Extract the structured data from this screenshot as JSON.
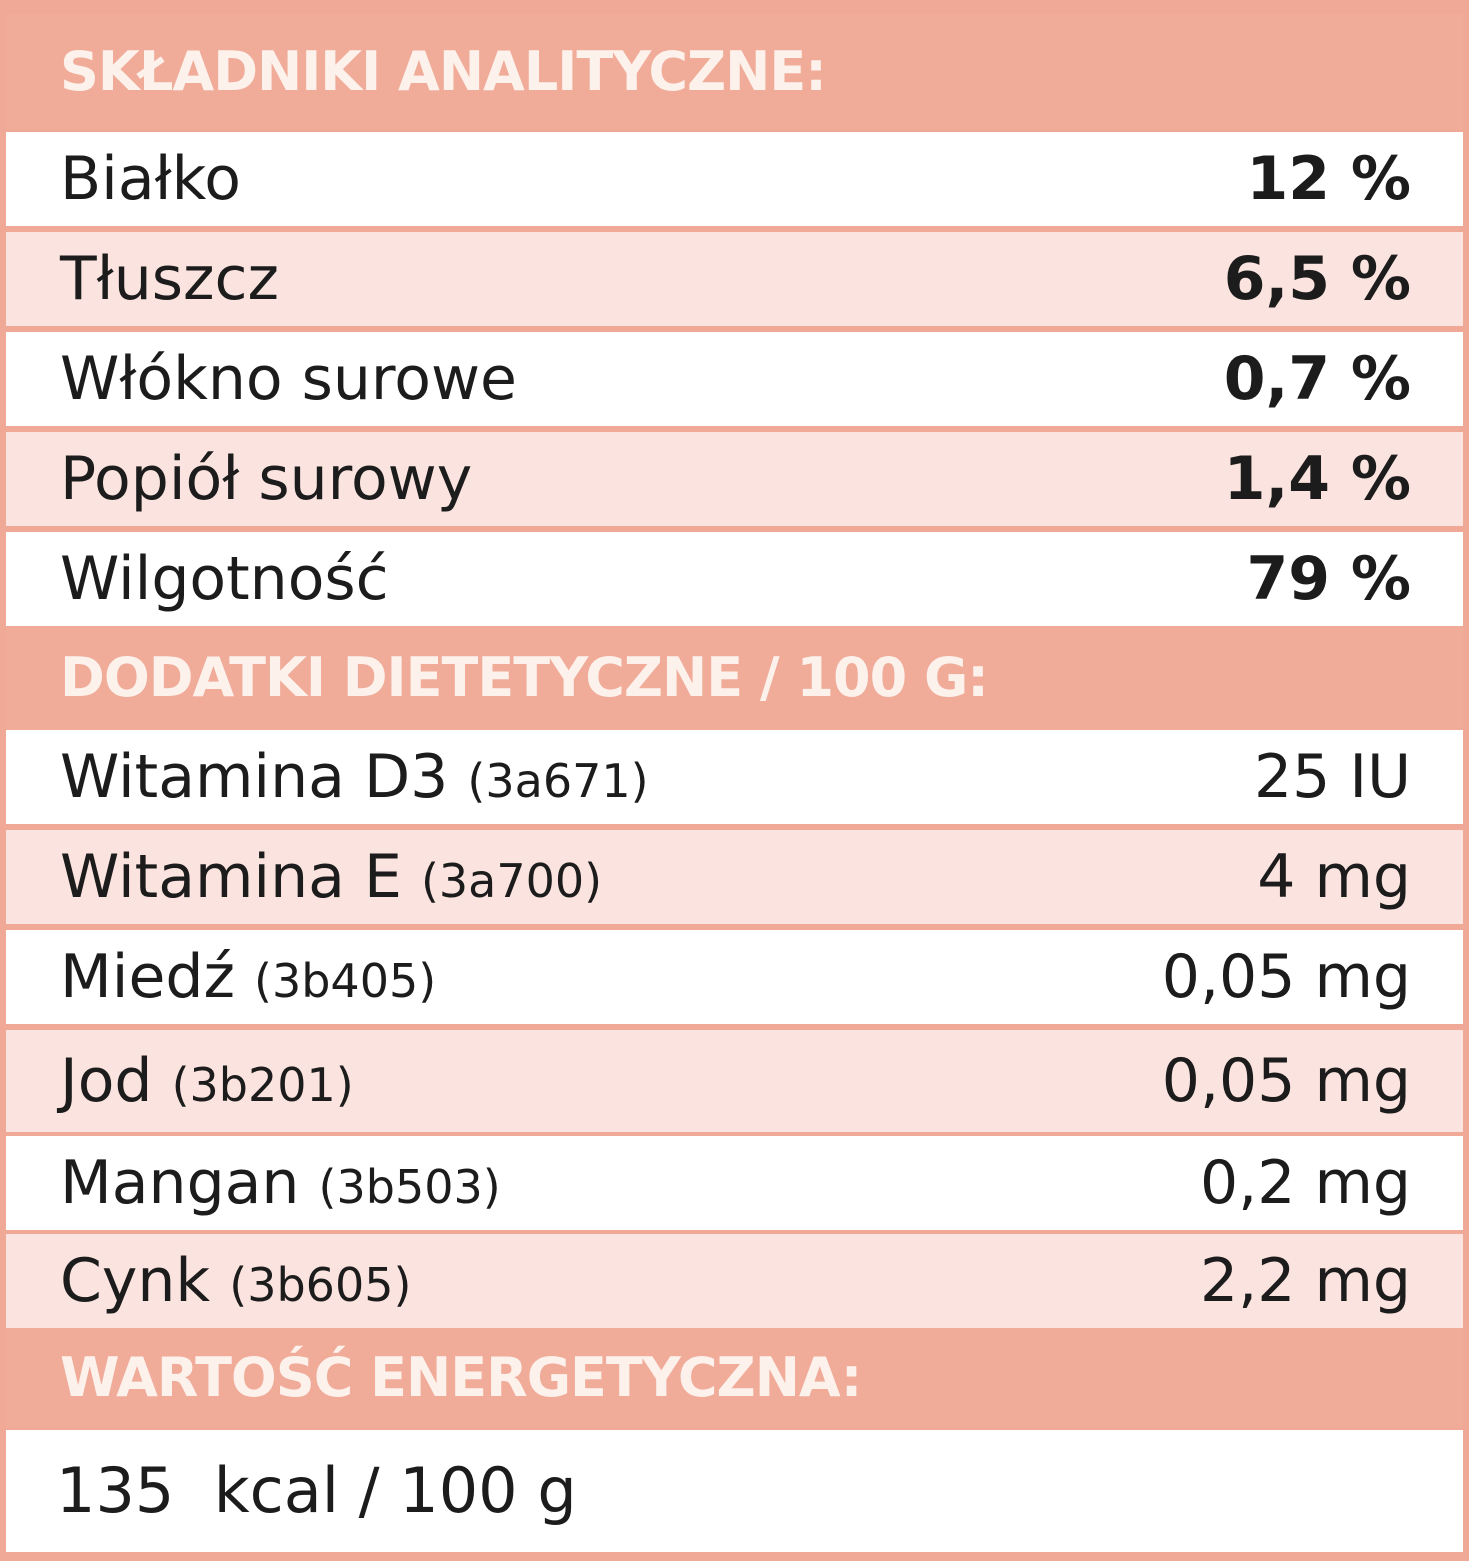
{
  "analytical": {
    "header": "SKŁADNIKI ANALITYCZNE:",
    "rows": [
      {
        "label": "Białko",
        "value": "12 %"
      },
      {
        "label": "Tłuszcz",
        "value": "6,5 %"
      },
      {
        "label": "Włókno surowe",
        "value": "0,7 %"
      },
      {
        "label": "Popiół surowy",
        "value": "1,4 %"
      },
      {
        "label": "Wilgotność",
        "value": "79 %"
      }
    ]
  },
  "additives": {
    "header": "DODATKI DIETETYCZNE / 100 G:",
    "rows": [
      {
        "label": "Witamina D3",
        "code": "(3a671)",
        "value": "25 IU"
      },
      {
        "label": "Witamina E",
        "code": "(3a700)",
        "value": "4 mg"
      },
      {
        "label": "Miedź",
        "code": "(3b405)",
        "value": "0,05 mg"
      },
      {
        "label": "Jod",
        "code": "(3b201)",
        "value": "0,05 mg"
      },
      {
        "label": "Mangan",
        "code": "(3b503)",
        "value": "0,2 mg"
      },
      {
        "label": "Cynk",
        "code": "(3b605)",
        "value": "2,2 mg"
      }
    ]
  },
  "energy": {
    "header": "WARTOŚĆ ENERGETYCZNA:",
    "value": "135  kcal / 100 g"
  },
  "colors": {
    "header_bg": "#f0ab99",
    "header_text": "#fdf1ec",
    "row_pink": "#fbe4df",
    "row_white": "#ffffff"
  }
}
